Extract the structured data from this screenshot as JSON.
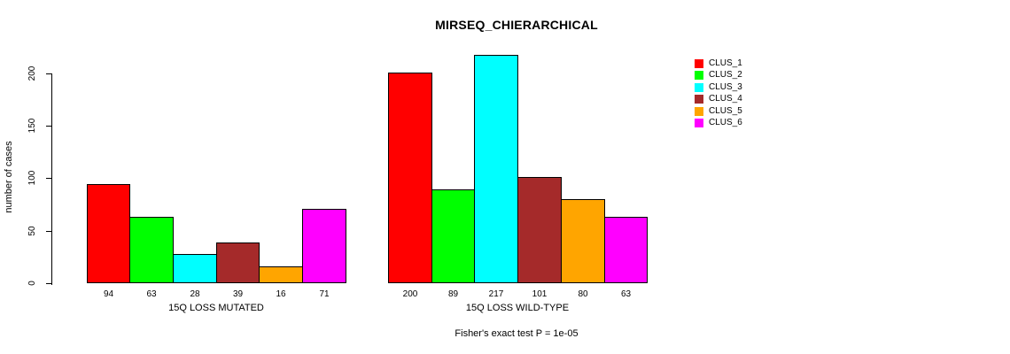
{
  "figure": {
    "title": "MIRSEQ_CHIERARCHICAL",
    "caption": "Fisher's exact test P = 1e-05"
  },
  "chart_data": {
    "type": "bar",
    "title": "MIRSEQ_CHIERARCHICAL",
    "xlabel": "",
    "ylabel": "number of cases",
    "ylim": [
      0,
      220
    ],
    "yticks": [
      0,
      50,
      100,
      150,
      200
    ],
    "grid": false,
    "legend_position": "top-right",
    "bar_outline_color": "#000000",
    "categories": [
      "15Q LOSS MUTATED",
      "15Q LOSS WILD-TYPE"
    ],
    "series": [
      {
        "name": "CLUS_1",
        "color": "#FF0000",
        "values": [
          94,
          200
        ]
      },
      {
        "name": "CLUS_2",
        "color": "#00FF00",
        "values": [
          63,
          89
        ]
      },
      {
        "name": "CLUS_3",
        "color": "#00FFFF",
        "values": [
          28,
          217
        ]
      },
      {
        "name": "CLUS_4",
        "color": "#A52A2A",
        "values": [
          39,
          101
        ]
      },
      {
        "name": "CLUS_5",
        "color": "#FFA500",
        "values": [
          16,
          80
        ]
      },
      {
        "name": "CLUS_6",
        "color": "#FF00FF",
        "values": [
          71,
          63
        ]
      }
    ],
    "value_labels_shown": true,
    "caption": "Fisher's exact test P = 1e-05"
  }
}
